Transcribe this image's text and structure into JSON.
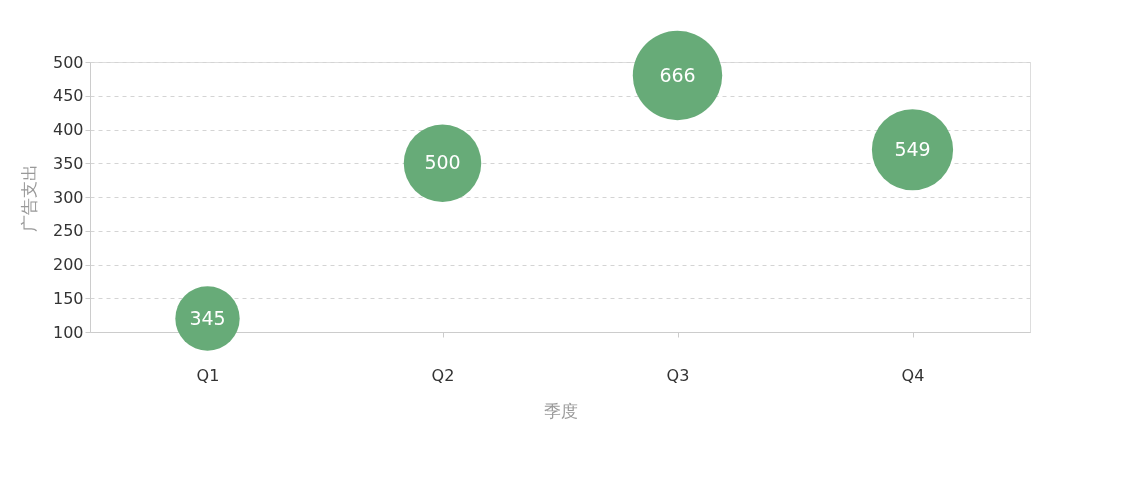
{
  "chart_data": {
    "type": "bubble",
    "xlabel": "季度",
    "ylabel": "广告支出",
    "categories": [
      "Q1",
      "Q2",
      "Q3",
      "Q4"
    ],
    "series": [
      {
        "color": "#67ab78",
        "values": [
          120,
          350,
          480,
          370
        ],
        "sizes": [
          345,
          500,
          666,
          549
        ],
        "value_labels": [
          "345",
          "500",
          "666",
          "549"
        ]
      }
    ],
    "ylim": [
      100,
      500
    ],
    "yticks": [
      100,
      150,
      200,
      250,
      300,
      350,
      400,
      450,
      500
    ],
    "grid": "y"
  }
}
